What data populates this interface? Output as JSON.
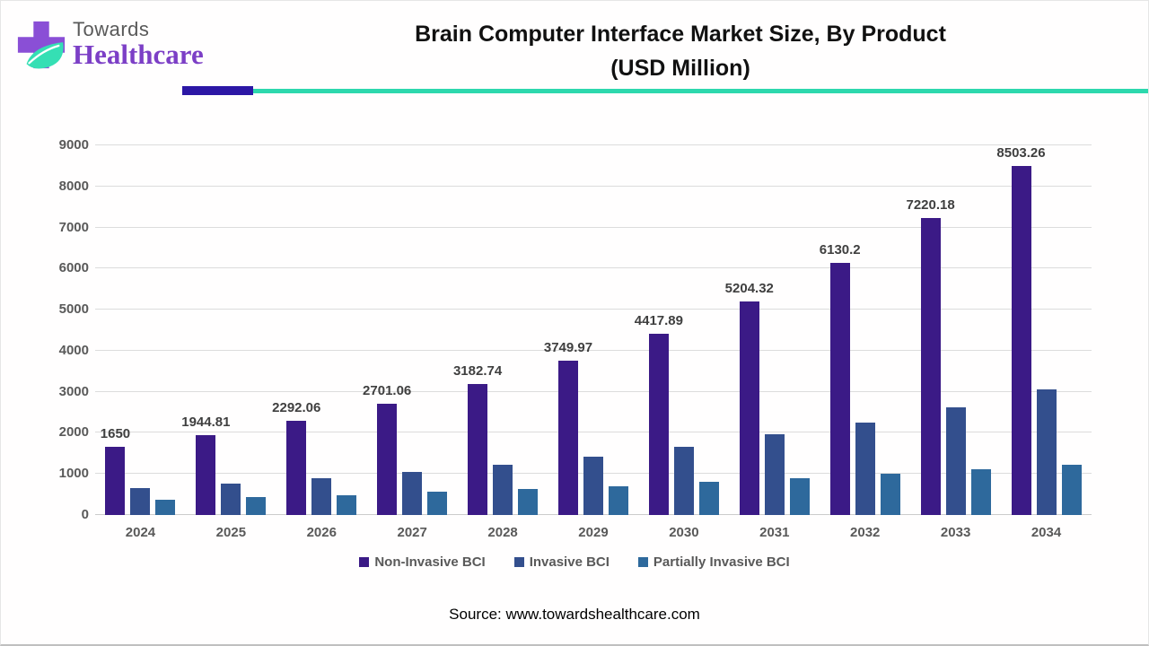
{
  "brand": {
    "name_top": "Towards",
    "name_bottom": "Healthcare",
    "cross_color": "#8a4fd6",
    "leaf_color": "#35dfb4"
  },
  "title": {
    "line1": "Brain Computer Interface Market Size, By Product",
    "line2": "(USD Million)"
  },
  "divider": {
    "purple": "#2c17a5",
    "teal": "#2dd8ad"
  },
  "chart_data": {
    "type": "bar",
    "title": "Brain Computer Interface Market Size, By Product (USD Million)",
    "categories": [
      "2024",
      "2025",
      "2026",
      "2027",
      "2028",
      "2029",
      "2030",
      "2031",
      "2032",
      "2033",
      "2034"
    ],
    "series": [
      {
        "name": "Non-Invasive BCI",
        "color": "#3b1a86",
        "values": [
          1650,
          1944.81,
          2292.06,
          2701.06,
          3182.74,
          3749.97,
          4417.89,
          5204.32,
          6130.2,
          7220.18,
          8503.26
        ],
        "show_labels": true
      },
      {
        "name": "Invasive BCI",
        "color": "#334f8d",
        "values": [
          650,
          770,
          900,
          1050,
          1220,
          1420,
          1670,
          1960,
          2250,
          2630,
          3060
        ],
        "show_labels": false
      },
      {
        "name": "Partially Invasive BCI",
        "color": "#2e699c",
        "values": [
          380,
          430,
          480,
          570,
          640,
          700,
          800,
          900,
          1010,
          1110,
          1230
        ],
        "show_labels": false
      }
    ],
    "xlabel": "",
    "ylabel": "",
    "ylim": [
      0,
      9000
    ],
    "ytick_interval": 1000,
    "grid": true,
    "legend_position": "bottom"
  },
  "source": {
    "text": "Source: www.towardshealthcare.com"
  }
}
